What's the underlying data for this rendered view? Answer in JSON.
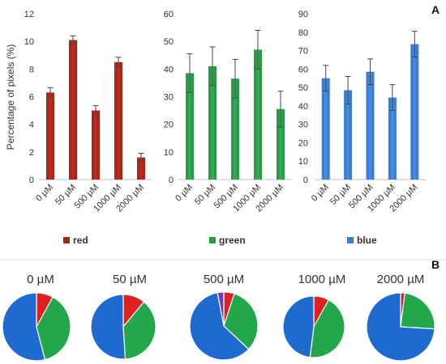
{
  "panels": {
    "a": "A",
    "b": "B"
  },
  "chart_data": [
    {
      "type": "bar",
      "name": "red",
      "ylabel": "Percentage of pixels (%)",
      "categories": [
        "0 µM",
        "50 µM",
        "500 µM",
        "1000 µM",
        "2000 µM"
      ],
      "values": [
        6.3,
        10.1,
        5.0,
        8.5,
        1.6
      ],
      "errors": [
        0.35,
        0.3,
        0.35,
        0.35,
        0.3
      ],
      "ylim": [
        0,
        12
      ],
      "yticks": [
        0,
        2,
        4,
        6,
        8,
        10,
        12
      ],
      "color": "#a12a1a",
      "color_light": "#d6281e"
    },
    {
      "type": "bar",
      "name": "green",
      "categories": [
        "0 µM",
        "50 µM",
        "500 µM",
        "1000 µM",
        "2000 µM"
      ],
      "values": [
        38.5,
        41.0,
        36.5,
        47.0,
        25.5
      ],
      "errors": [
        7.0,
        7.0,
        7.0,
        7.0,
        6.5
      ],
      "ylim": [
        0,
        60
      ],
      "yticks": [
        0,
        10,
        20,
        30,
        40,
        50,
        60
      ],
      "color": "#2a9a48",
      "color_light": "#3bb85c"
    },
    {
      "type": "bar",
      "name": "blue",
      "categories": [
        "0 µM",
        "50 µM",
        "500 µM",
        "1000 µM",
        "2000 µM"
      ],
      "values": [
        55.0,
        48.5,
        58.5,
        44.5,
        73.5
      ],
      "errors": [
        7.0,
        7.5,
        7.0,
        7.0,
        7.0
      ],
      "ylim": [
        0,
        90
      ],
      "yticks": [
        0,
        10,
        20,
        30,
        40,
        50,
        60,
        70,
        80,
        90
      ],
      "color": "#3a7ed4",
      "color_light": "#4f93e6"
    },
    {
      "type": "pie",
      "legend": [
        "red",
        "green",
        "blue"
      ],
      "colors": [
        "#e02020",
        "#22a84a",
        "#1e6ad0",
        "#7a3ab8"
      ],
      "pies": [
        {
          "label": "0 µM",
          "values": [
            8,
            38,
            54
          ]
        },
        {
          "label": "50 µM",
          "values": [
            11,
            38,
            51
          ]
        },
        {
          "label": "500 µM",
          "values": [
            5,
            32,
            60,
            3
          ]
        },
        {
          "label": "1000 µM",
          "values": [
            8,
            44,
            48
          ]
        },
        {
          "label": "2000 µM",
          "values": [
            2,
            24,
            74
          ]
        }
      ]
    }
  ]
}
